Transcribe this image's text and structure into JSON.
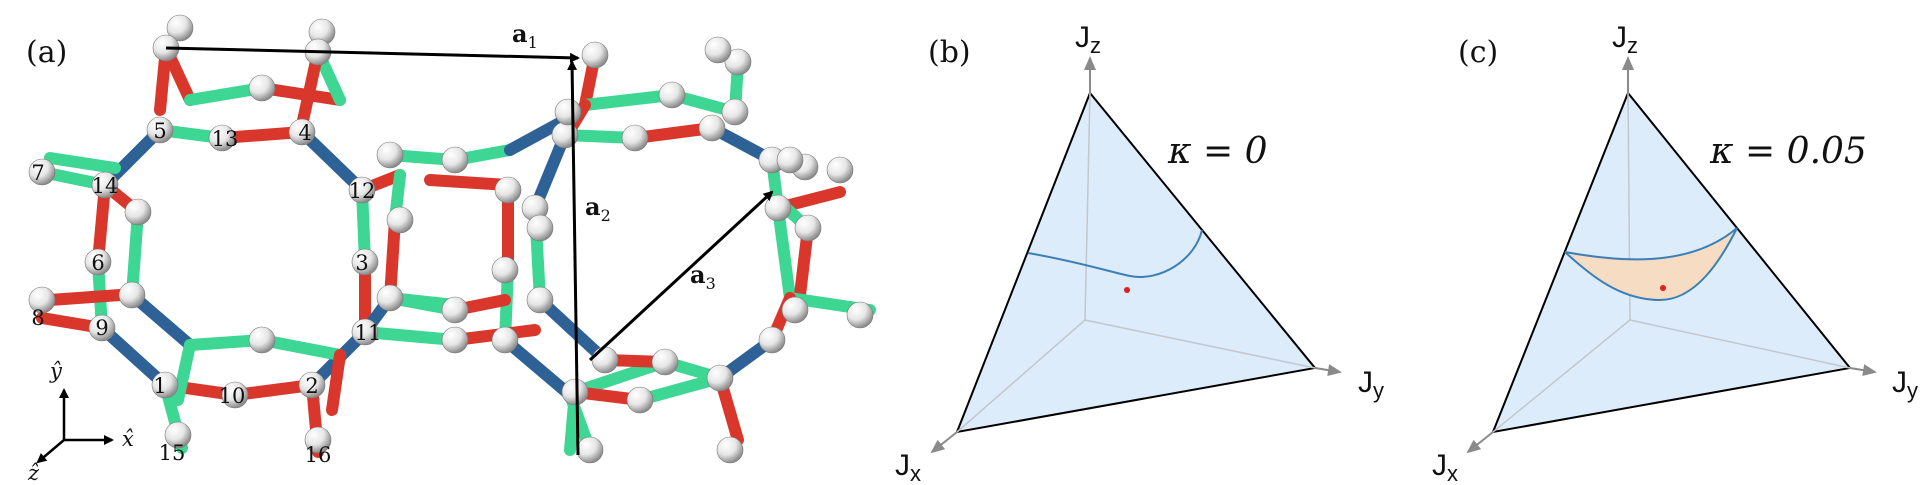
{
  "figure": {
    "panel_a": {
      "label": "(a)",
      "vectors": [
        {
          "name": "a",
          "sub": "1"
        },
        {
          "name": "a",
          "sub": "2"
        },
        {
          "name": "a",
          "sub": "3"
        }
      ],
      "site_numbers": [
        "1",
        "2",
        "3",
        "4",
        "5",
        "6",
        "7",
        "8",
        "9",
        "10",
        "11",
        "12",
        "13",
        "14",
        "15",
        "16"
      ],
      "axes": {
        "x": "x̂",
        "y": "ŷ",
        "z": "ẑ"
      },
      "bond_colors": {
        "x": "#2e6296",
        "y": "#d9372c",
        "z": "#3dd693"
      }
    },
    "panel_b": {
      "label": "(b)",
      "kappa_text": "κ = 0",
      "axis_labels": {
        "jz": "J",
        "jz_sub": "z",
        "jy": "J",
        "jy_sub": "y",
        "jx": "J",
        "jx_sub": "x"
      }
    },
    "panel_c": {
      "label": "(c)",
      "kappa_text": "κ = 0.05",
      "axis_labels": {
        "jz": "J",
        "jz_sub": "z",
        "jy": "J",
        "jy_sub": "y",
        "jx": "J",
        "jx_sub": "x"
      }
    },
    "colors": {
      "triangle_fill": "#dcecfa",
      "curve": "#3b7fb6",
      "region_fill": "#f6dcc2",
      "point": "#e02020",
      "axis_gray": "#8a8a8a"
    }
  }
}
